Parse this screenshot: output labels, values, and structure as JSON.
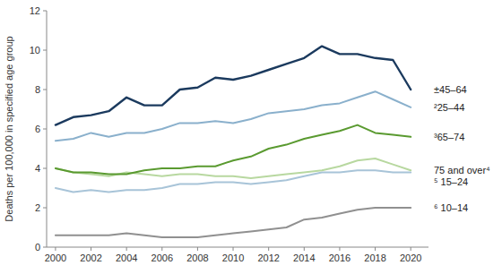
{
  "chart_data": {
    "type": "line",
    "ylabel": "Deaths per 100,000 in specified age group",
    "x": [
      2000,
      2001,
      2002,
      2003,
      2004,
      2005,
      2006,
      2007,
      2008,
      2009,
      2010,
      2011,
      2012,
      2013,
      2014,
      2015,
      2016,
      2017,
      2018,
      2019,
      2020
    ],
    "series": [
      {
        "name": "±45–64",
        "color": "#1b3a5e",
        "values": [
          6.2,
          6.6,
          6.7,
          6.9,
          7.6,
          7.2,
          7.2,
          8.0,
          8.1,
          8.6,
          8.5,
          8.7,
          9.0,
          9.3,
          9.6,
          10.2,
          9.8,
          9.8,
          9.6,
          9.5,
          8.0
        ]
      },
      {
        "name": "²25–44",
        "color": "#8ab0cc",
        "values": [
          5.4,
          5.5,
          5.8,
          5.6,
          5.8,
          5.8,
          6.0,
          6.3,
          6.3,
          6.4,
          6.3,
          6.5,
          6.8,
          6.9,
          7.0,
          7.2,
          7.3,
          7.6,
          7.9,
          7.5,
          7.1
        ]
      },
      {
        "name": "³65–74",
        "color": "#5a9a30",
        "values": [
          4.0,
          3.8,
          3.8,
          3.7,
          3.7,
          3.9,
          4.0,
          4.0,
          4.1,
          4.1,
          4.4,
          4.6,
          5.0,
          5.2,
          5.5,
          5.7,
          5.9,
          6.2,
          5.8,
          5.7,
          5.6
        ]
      },
      {
        "name": "75 and over⁴",
        "color": "#b8d8a0",
        "values": [
          4.0,
          3.8,
          3.7,
          3.6,
          3.8,
          3.7,
          3.6,
          3.7,
          3.7,
          3.6,
          3.6,
          3.5,
          3.6,
          3.7,
          3.8,
          3.9,
          4.1,
          4.4,
          4.5,
          4.2,
          3.9
        ]
      },
      {
        "name": "⁵ 15–24",
        "color": "#a8c4d8",
        "values": [
          3.0,
          2.8,
          2.9,
          2.8,
          2.9,
          2.9,
          3.0,
          3.2,
          3.2,
          3.3,
          3.3,
          3.2,
          3.3,
          3.4,
          3.6,
          3.8,
          3.8,
          3.9,
          3.9,
          3.8,
          3.8
        ]
      },
      {
        "name": "⁶ 10–14",
        "color": "#909090",
        "values": [
          0.6,
          0.6,
          0.6,
          0.6,
          0.7,
          0.6,
          0.5,
          0.5,
          0.5,
          0.6,
          0.7,
          0.8,
          0.9,
          1.0,
          1.4,
          1.5,
          1.7,
          1.9,
          2.0,
          2.0,
          2.0
        ]
      }
    ],
    "xlim": [
      1999.5,
      2021.0
    ],
    "xticks": [
      2000,
      2002,
      2004,
      2006,
      2008,
      2010,
      2012,
      2014,
      2016,
      2018,
      2020
    ],
    "ylim": [
      0,
      12
    ],
    "yticks": [
      0,
      2,
      4,
      6,
      8,
      10,
      12
    ],
    "grid": false
  }
}
